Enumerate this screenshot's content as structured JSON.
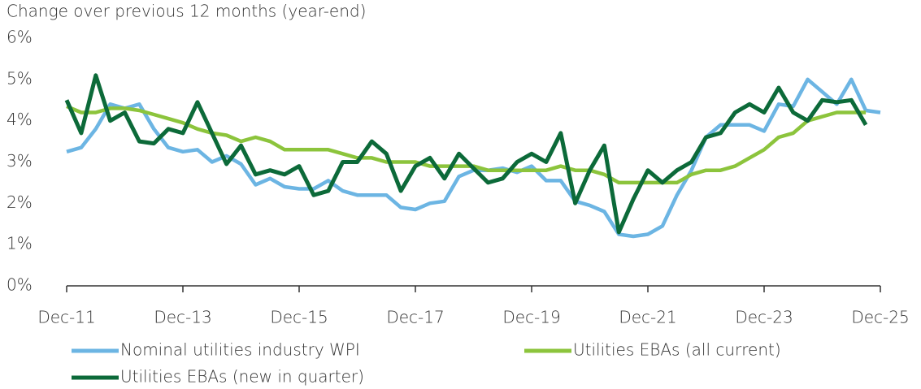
{
  "chart_data": {
    "type": "line",
    "ylabel": "Change over previous 12 months (year-end)",
    "categories": [
      "Dec-11",
      null,
      null,
      null,
      null,
      null,
      null,
      null,
      "Dec-13",
      null,
      null,
      null,
      null,
      null,
      null,
      null,
      "Dec-15",
      null,
      null,
      null,
      null,
      null,
      null,
      null,
      "Dec-17",
      null,
      null,
      null,
      null,
      null,
      null,
      null,
      "Dec-19",
      null,
      null,
      null,
      null,
      null,
      null,
      null,
      "Dec-21",
      null,
      null,
      null,
      null,
      null,
      null,
      null,
      "Dec-23",
      null,
      null,
      null,
      null,
      null,
      null,
      null,
      "Dec-25"
    ],
    "series": [
      {
        "name": "Nominal utilities industry WPI",
        "color": "#6cb5e3",
        "values": [
          3.25,
          3.35,
          3.8,
          4.4,
          4.3,
          4.4,
          3.8,
          3.35,
          3.25,
          3.3,
          3.0,
          3.15,
          2.95,
          2.45,
          2.6,
          2.4,
          2.35,
          2.35,
          2.55,
          2.3,
          2.2,
          2.2,
          2.2,
          1.9,
          1.85,
          2.0,
          2.05,
          2.65,
          2.8,
          2.8,
          2.85,
          2.75,
          2.9,
          2.55,
          2.55,
          2.05,
          1.95,
          1.8,
          1.25,
          1.2,
          1.25,
          1.45,
          2.2,
          2.8,
          3.6,
          3.9,
          3.9,
          3.9,
          3.75,
          4.4,
          4.35,
          5.0,
          4.7,
          4.4,
          5.0,
          4.25,
          4.2
        ]
      },
      {
        "name": "Utilities EBAs (all current)",
        "color": "#8cc43c",
        "values": [
          4.35,
          4.2,
          4.2,
          4.3,
          4.3,
          4.25,
          4.15,
          4.05,
          3.95,
          3.8,
          3.7,
          3.65,
          3.5,
          3.6,
          3.5,
          3.3,
          3.3,
          3.3,
          3.3,
          3.2,
          3.1,
          3.1,
          3.0,
          3.0,
          3.0,
          2.9,
          2.9,
          2.9,
          2.9,
          2.8,
          2.8,
          2.8,
          2.8,
          2.8,
          2.9,
          2.8,
          2.8,
          2.7,
          2.5,
          2.5,
          2.5,
          2.5,
          2.5,
          2.7,
          2.8,
          2.8,
          2.9,
          3.1,
          3.3,
          3.6,
          3.7,
          4.0,
          4.1,
          4.2,
          4.2,
          4.2,
          null
        ]
      },
      {
        "name": "Utilities EBAs (new in quarter)",
        "color": "#0c6a39",
        "values": [
          4.5,
          3.7,
          5.1,
          4.0,
          4.2,
          3.5,
          3.45,
          3.8,
          3.7,
          4.45,
          3.7,
          2.95,
          3.4,
          2.7,
          2.8,
          2.7,
          2.9,
          2.2,
          2.3,
          3.0,
          3.0,
          3.5,
          3.2,
          2.3,
          2.9,
          3.1,
          2.6,
          3.2,
          2.85,
          2.5,
          2.6,
          3.0,
          3.2,
          3.0,
          3.7,
          2.0,
          2.8,
          3.4,
          1.3,
          2.1,
          2.8,
          2.5,
          2.8,
          3.0,
          3.6,
          3.7,
          4.2,
          4.4,
          4.2,
          4.8,
          4.2,
          4.0,
          4.5,
          4.45,
          4.5,
          3.9,
          null
        ]
      }
    ],
    "ylim": [
      0,
      6
    ],
    "yticks": [
      {
        "value": 0,
        "label": "0%"
      },
      {
        "value": 1,
        "label": "1%"
      },
      {
        "value": 2,
        "label": "2%"
      },
      {
        "value": 3,
        "label": "3%"
      },
      {
        "value": 4,
        "label": "4%"
      },
      {
        "value": 5,
        "label": "5%"
      },
      {
        "value": 6,
        "label": "6%"
      }
    ],
    "grid": false
  }
}
